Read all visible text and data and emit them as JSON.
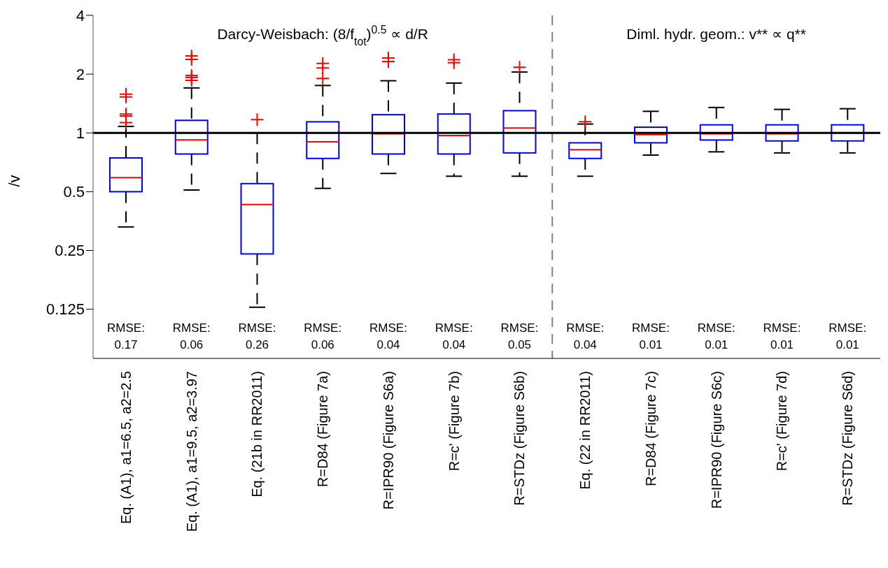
{
  "chart_data": {
    "type": "box",
    "ylabel": "/v",
    "categories": [
      "Eq. (A1), a1=6.5, a2=2.5",
      "Eq. (A1), a1=9.5, a2=3.97",
      "Eq. (21b in RR2011)",
      "R=D84 (Figure 7a)",
      "R=IPR90 (Figure S6a)",
      "R=c' (Figure 7b)",
      "R=STDz (Figure S6b)",
      "Eq. (22 in RR2011)",
      "R=D84 (Figure 7c)",
      "R=IPR90 (Figure S6c)",
      "R=c' (Figure 7d)",
      "R=STDz (Figure S6d)"
    ],
    "boxes": [
      {
        "low": 0.33,
        "q1": 0.5,
        "median": 0.59,
        "q3": 0.745,
        "high": 1.08,
        "outliers": [
          1.13,
          1.22,
          1.25,
          1.53,
          1.58
        ]
      },
      {
        "low": 0.51,
        "q1": 0.78,
        "median": 0.92,
        "q3": 1.16,
        "high": 1.7,
        "outliers": [
          1.86,
          1.92,
          1.97,
          2.38,
          2.48
        ]
      },
      {
        "low": 0.128,
        "q1": 0.24,
        "median": 0.43,
        "q3": 0.55,
        "high": 1.0,
        "outliers": [
          1.17
        ]
      },
      {
        "low": 0.52,
        "q1": 0.74,
        "median": 0.9,
        "q3": 1.14,
        "high": 1.75,
        "outliers": [
          1.9,
          2.15,
          2.27
        ]
      },
      {
        "low": 0.62,
        "q1": 0.78,
        "median": 0.99,
        "q3": 1.24,
        "high": 1.85,
        "outliers": [
          2.32,
          2.42
        ]
      },
      {
        "low": 0.6,
        "q1": 0.78,
        "median": 0.97,
        "q3": 1.25,
        "high": 1.8,
        "outliers": [
          2.29,
          2.37
        ]
      },
      {
        "low": 0.6,
        "q1": 0.79,
        "median": 1.06,
        "q3": 1.3,
        "high": 2.05,
        "outliers": [
          2.17
        ]
      },
      {
        "low": 0.6,
        "q1": 0.74,
        "median": 0.82,
        "q3": 0.89,
        "high": 1.11,
        "outliers": [
          1.14
        ]
      },
      {
        "low": 0.77,
        "q1": 0.89,
        "median": 0.98,
        "q3": 1.07,
        "high": 1.29
      },
      {
        "low": 0.8,
        "q1": 0.92,
        "median": 0.99,
        "q3": 1.1,
        "high": 1.35
      },
      {
        "low": 0.79,
        "q1": 0.91,
        "median": 0.99,
        "q3": 1.1,
        "high": 1.32
      },
      {
        "low": 0.79,
        "q1": 0.91,
        "median": 1.0,
        "q3": 1.1,
        "high": 1.33
      }
    ],
    "ylim": [
      0.07,
      4
    ],
    "yticks": [
      0.125,
      0.25,
      0.5,
      1,
      2,
      4
    ],
    "log": true,
    "grid": false,
    "legend": false,
    "ref_lines": [
      {
        "axis": "y",
        "value": 1,
        "color": "#000000",
        "line_style": "solid"
      }
    ],
    "annotations": [
      "Darcy-Weisbach: (8/f$_{tot}$)$^{0.5}$ ∝ d/R",
      "Diml. hydr. geom.: v** ∝ q**",
      "RMSE:\n0.17",
      "RMSE:\n0.06",
      "RMSE:\n0.26",
      "RMSE:\n0.06",
      "RMSE:\n0.04",
      "RMSE:\n0.04",
      "RMSE:\n0.05",
      "RMSE:\n0.04",
      "RMSE:\n0.01",
      "RMSE:\n0.01",
      "RMSE:\n0.01",
      "RMSE:\n0.01"
    ]
  }
}
